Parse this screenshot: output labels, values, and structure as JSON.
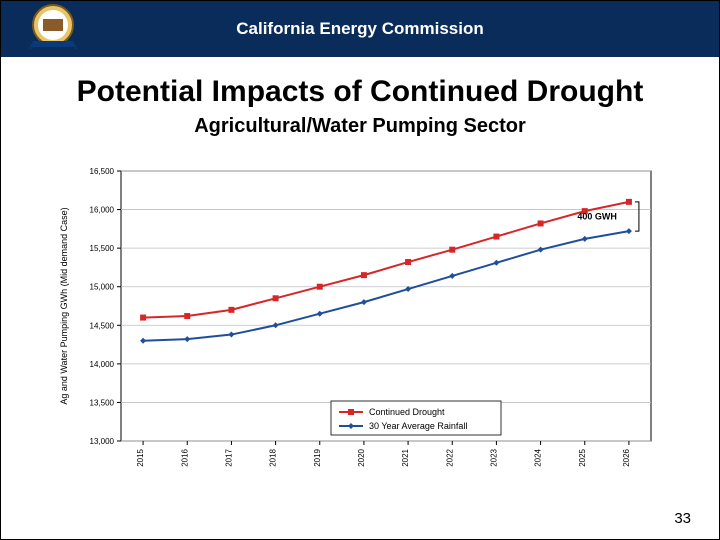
{
  "header": {
    "org": "California Energy Commission"
  },
  "title": "Potential Impacts of Continued Drought",
  "subtitle": "Agricultural/Water Pumping Sector",
  "page_number": "33",
  "chart": {
    "type": "line",
    "background_color": "#ffffff",
    "border_color": "#000000",
    "grid_color": "#bfbfbf",
    "axis_color": "#000000",
    "y_axis": {
      "label": "Ag and Water Pumping GWh (Mid demand Case)",
      "label_fontsize": 9,
      "min": 13000,
      "max": 16500,
      "ticks": [
        13000,
        13500,
        14000,
        14500,
        15000,
        15500,
        16000,
        16500
      ],
      "tick_labels": [
        "13,000",
        "13,500",
        "14,000",
        "14,500",
        "15,000",
        "15,500",
        "16,000",
        "16,500"
      ],
      "tick_fontsize": 8
    },
    "x_axis": {
      "ticks_labels": [
        "2015",
        "2016",
        "2017",
        "2018",
        "2019",
        "2020",
        "2021",
        "2022",
        "2023",
        "2024",
        "2025",
        "2026"
      ],
      "tick_fontsize": 8,
      "rotation": -90
    },
    "series": [
      {
        "name": "Continued Drought",
        "color": "#d62728",
        "marker": "square",
        "marker_size": 6,
        "line_width": 2,
        "values": [
          14600,
          14620,
          14700,
          14850,
          15000,
          15150,
          15320,
          15480,
          15650,
          15820,
          15980,
          16100
        ]
      },
      {
        "name": "30 Year Average Rainfall",
        "color": "#1f4e9c",
        "marker": "diamond",
        "marker_size": 6,
        "line_width": 2,
        "values": [
          14300,
          14320,
          14380,
          14500,
          14650,
          14800,
          14970,
          15140,
          15310,
          15480,
          15620,
          15720
        ]
      }
    ],
    "annotation": {
      "text": "400 GWH",
      "fontsize": 9,
      "x_index": 11,
      "arrow_color": "#000000"
    },
    "legend": {
      "position": "lower-center",
      "fontsize": 9,
      "border_color": "#000000"
    }
  }
}
